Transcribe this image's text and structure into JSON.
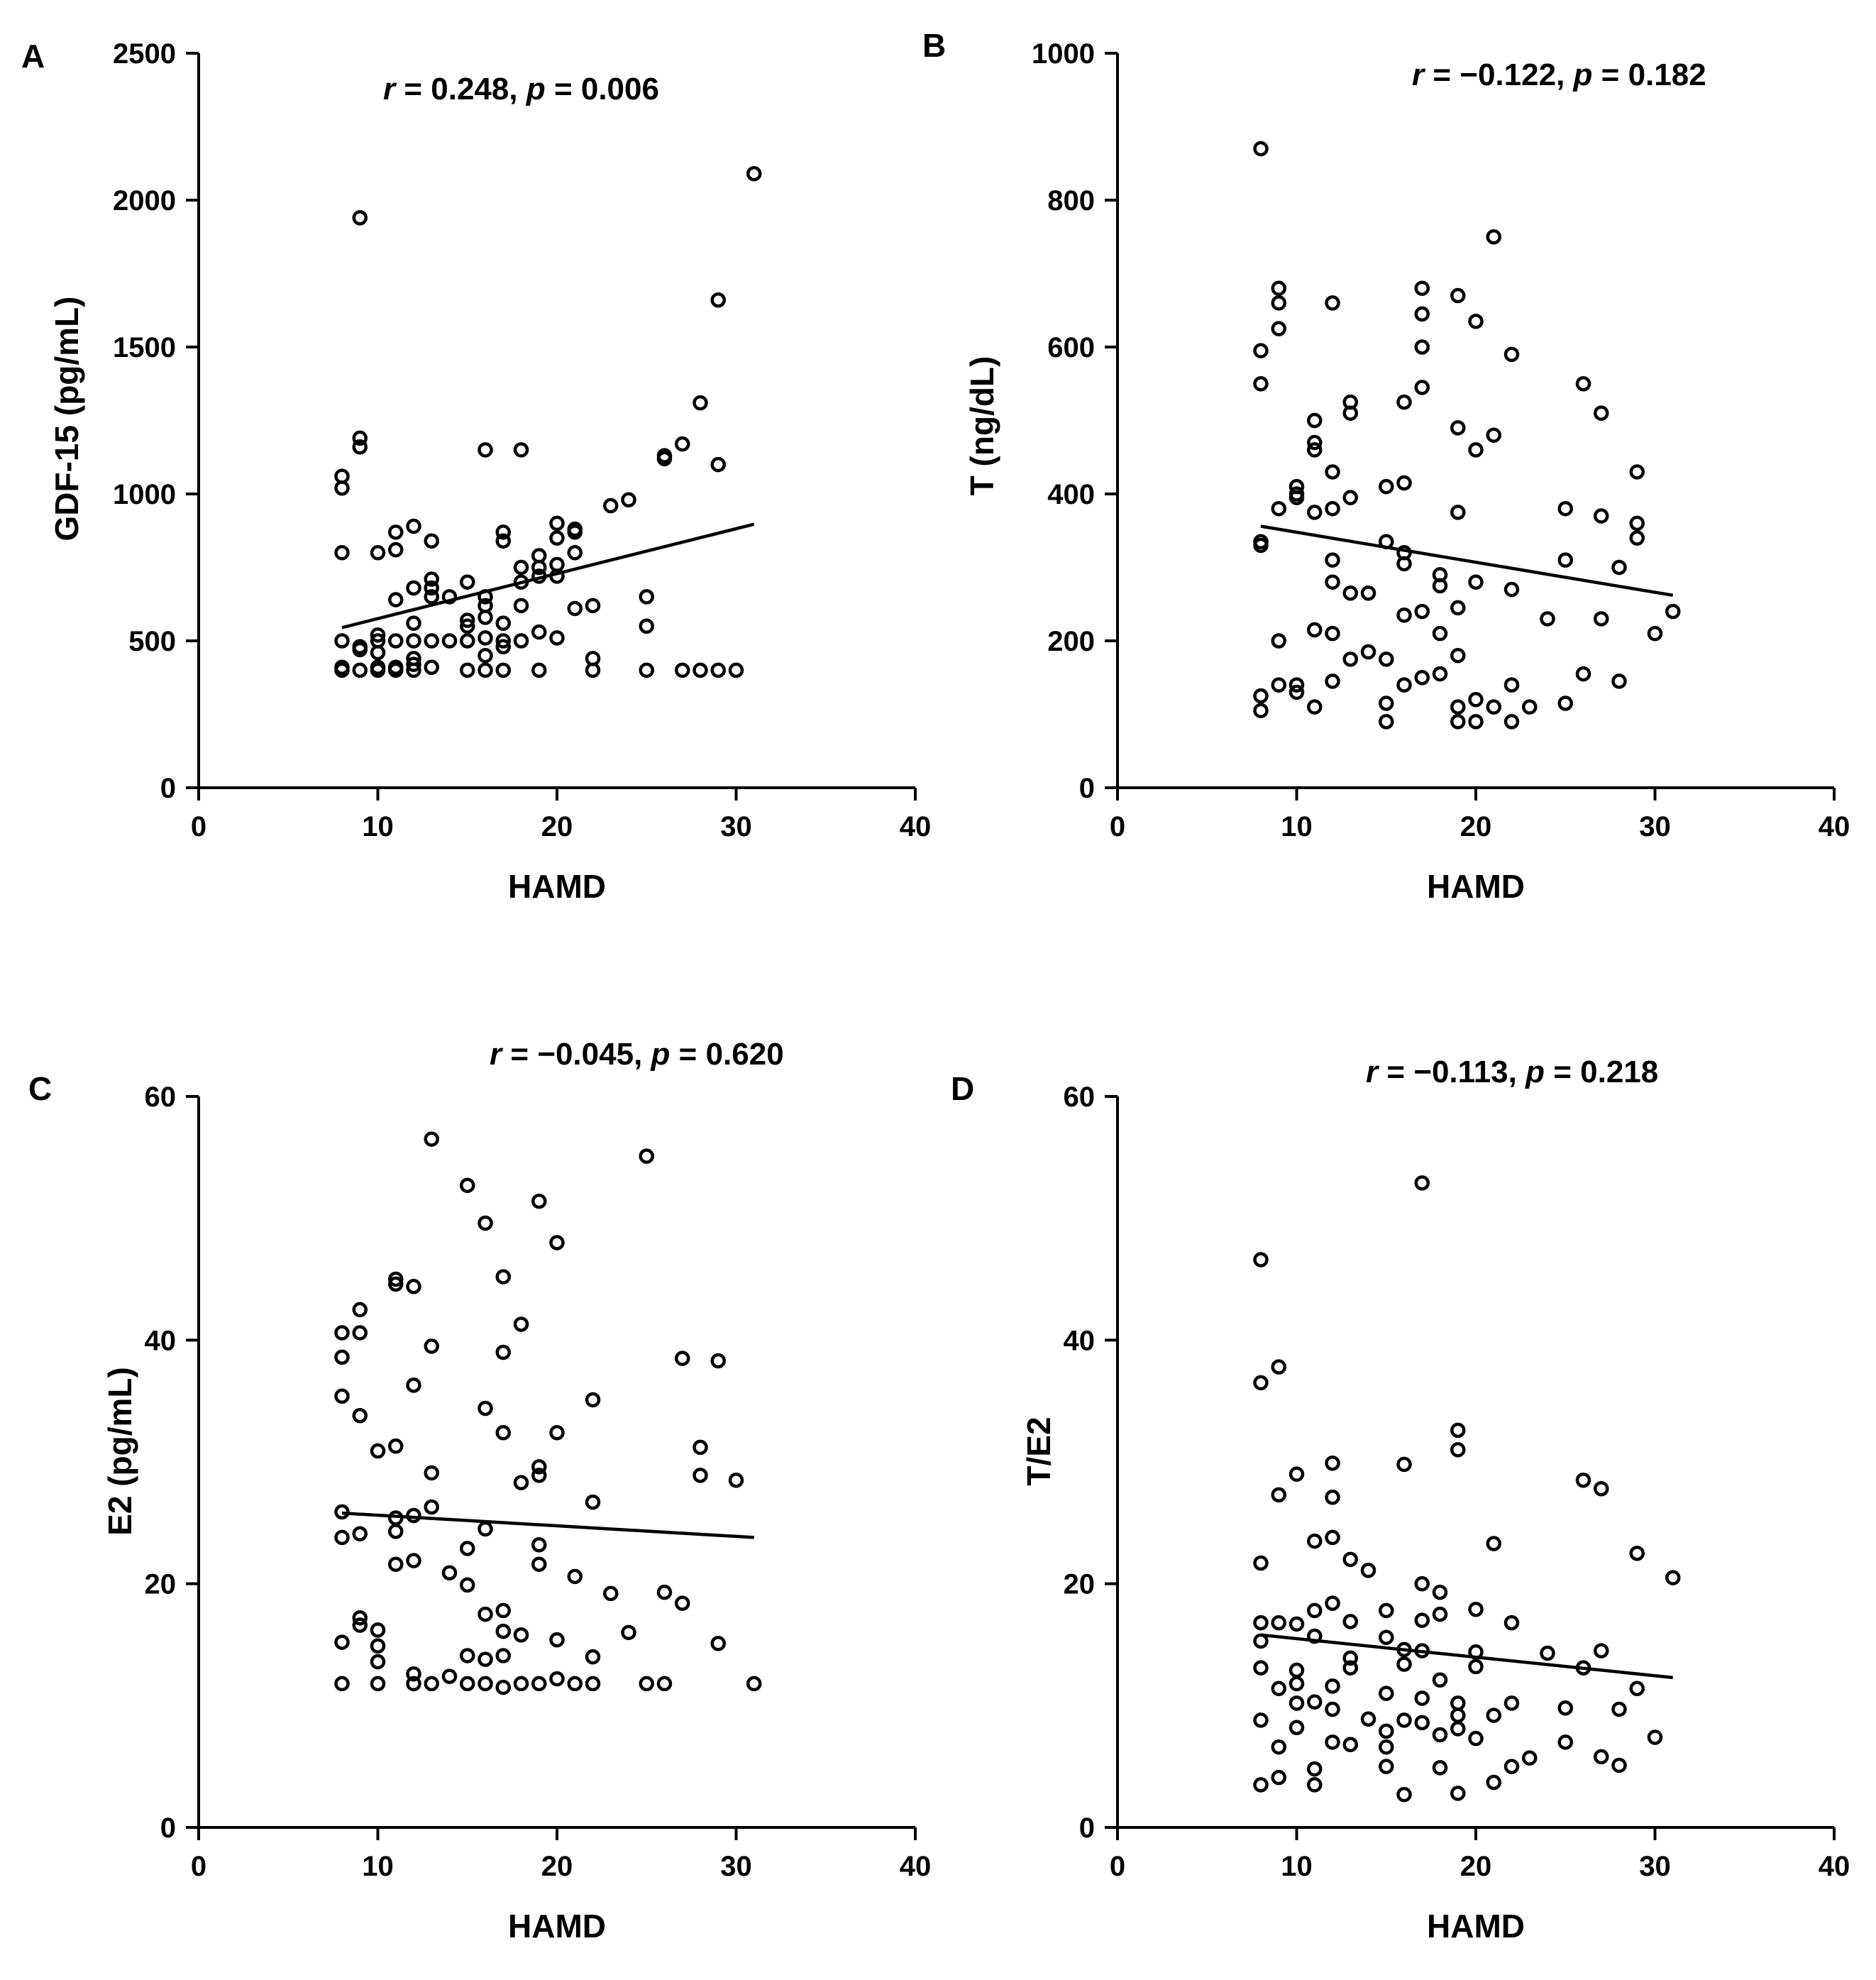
{
  "chart_data": [
    {
      "panel": "A",
      "type": "scatter",
      "stat": {
        "r_symbol": "r",
        "r_value": " = 0.248, ",
        "p_symbol": "p",
        "p_value": " = 0.006"
      },
      "xlabel": "HAMD",
      "ylabel": "GDF-15 (pg/mL)",
      "xlim": [
        0,
        40
      ],
      "ylim": [
        0,
        2500
      ],
      "xticks": [
        "0",
        "10",
        "20",
        "30",
        "40"
      ],
      "yticks": [
        "0",
        "500",
        "1000",
        "1500",
        "2000",
        "2500"
      ],
      "x": [
        8,
        8,
        8,
        8,
        8,
        8,
        9,
        9,
        9,
        9,
        9,
        9,
        10,
        10,
        10,
        10,
        10,
        10,
        11,
        11,
        11,
        11,
        11,
        11,
        12,
        12,
        12,
        12,
        12,
        12,
        12,
        13,
        13,
        13,
        13,
        13,
        13,
        14,
        14,
        15,
        15,
        15,
        15,
        15,
        16,
        16,
        16,
        16,
        16,
        16,
        16,
        17,
        17,
        17,
        17,
        17,
        17,
        18,
        18,
        18,
        18,
        18,
        19,
        19,
        19,
        19,
        19,
        20,
        20,
        20,
        20,
        20,
        21,
        21,
        21,
        21,
        22,
        22,
        22,
        23,
        24,
        25,
        25,
        25,
        26,
        26,
        27,
        27,
        28,
        28,
        29,
        29,
        29,
        30,
        31
      ],
      "y": [
        400,
        410,
        500,
        800,
        1020,
        1060,
        400,
        470,
        480,
        1160,
        1190,
        1940,
        400,
        410,
        460,
        500,
        520,
        800,
        400,
        410,
        500,
        640,
        810,
        870,
        400,
        420,
        440,
        500,
        560,
        680,
        890,
        410,
        500,
        650,
        680,
        710,
        840,
        500,
        650,
        400,
        500,
        550,
        570,
        700,
        400,
        450,
        510,
        580,
        620,
        650,
        1150,
        400,
        480,
        500,
        560,
        840,
        870,
        500,
        620,
        700,
        750,
        1150,
        400,
        530,
        720,
        750,
        790,
        510,
        720,
        760,
        850,
        900,
        610,
        800,
        870,
        880,
        400,
        440,
        620,
        960,
        980,
        400,
        550,
        650,
        1130,
        1120,
        400,
        1170,
        400,
        1310,
        400,
        1100,
        1660,
        400,
        2090
      ],
      "fit": {
        "x": [
          8,
          31
        ],
        "y": [
          545,
          897
        ]
      }
    },
    {
      "panel": "B",
      "type": "scatter",
      "stat": {
        "r_symbol": "r",
        "r_value": " = −0.122, ",
        "p_symbol": "p",
        "p_value": " = 0.182"
      },
      "xlabel": "HAMD",
      "ylabel": "T (ng/dL)",
      "xlim": [
        0,
        40
      ],
      "ylim": [
        0,
        1000
      ],
      "xticks": [
        "0",
        "10",
        "20",
        "30",
        "40"
      ],
      "yticks": [
        "0",
        "200",
        "400",
        "600",
        "800",
        "1000"
      ],
      "x": [
        8,
        8,
        8,
        8,
        8,
        8,
        8,
        9,
        9,
        9,
        9,
        9,
        9,
        10,
        10,
        10,
        10,
        10,
        11,
        11,
        11,
        11,
        11,
        11,
        12,
        12,
        12,
        12,
        12,
        12,
        12,
        13,
        13,
        13,
        13,
        13,
        14,
        14,
        15,
        15,
        15,
        15,
        15,
        16,
        16,
        16,
        16,
        16,
        16,
        17,
        17,
        17,
        17,
        17,
        17,
        18,
        18,
        18,
        18,
        19,
        19,
        19,
        19,
        19,
        19,
        19,
        20,
        20,
        20,
        20,
        20,
        21,
        21,
        21,
        22,
        22,
        22,
        22,
        23,
        24,
        25,
        25,
        25,
        26,
        26,
        27,
        27,
        27,
        28,
        28,
        29,
        29,
        29,
        30,
        31
      ],
      "y": [
        105,
        125,
        330,
        335,
        550,
        595,
        870,
        140,
        200,
        380,
        660,
        680,
        625,
        130,
        140,
        400,
        410,
        395,
        110,
        215,
        375,
        460,
        470,
        500,
        145,
        210,
        280,
        310,
        380,
        430,
        660,
        175,
        265,
        395,
        510,
        525,
        185,
        265,
        90,
        115,
        175,
        335,
        410,
        140,
        235,
        305,
        320,
        415,
        525,
        150,
        240,
        545,
        600,
        645,
        680,
        155,
        210,
        275,
        290,
        90,
        110,
        180,
        245,
        375,
        490,
        670,
        90,
        120,
        280,
        460,
        635,
        110,
        480,
        750,
        90,
        140,
        270,
        590,
        110,
        230,
        115,
        310,
        380,
        155,
        550,
        230,
        370,
        510,
        145,
        300,
        340,
        360,
        430,
        210,
        240
      ],
      "fit": {
        "x": [
          8,
          31
        ],
        "y": [
          356,
          262
        ]
      }
    },
    {
      "panel": "C",
      "type": "scatter",
      "stat": {
        "r_symbol": "r",
        "r_value": " = −0.045, ",
        "p_symbol": "p",
        "p_value": " = 0.620"
      },
      "xlabel": "HAMD",
      "ylabel": "E2 (pg/mL)",
      "xlim": [
        0,
        40
      ],
      "ylim": [
        0,
        60
      ],
      "xticks": [
        "0",
        "10",
        "20",
        "30",
        "40"
      ],
      "yticks": [
        "0",
        "20",
        "40",
        "60"
      ],
      "x": [
        8,
        8,
        8,
        8,
        8,
        8,
        8,
        9,
        9,
        9,
        9,
        9,
        9,
        10,
        10,
        10,
        10,
        10,
        11,
        11,
        11,
        11,
        11,
        11,
        12,
        12,
        12,
        12,
        12,
        12,
        13,
        13,
        13,
        13,
        13,
        14,
        14,
        15,
        15,
        15,
        15,
        15,
        16,
        16,
        16,
        16,
        16,
        16,
        17,
        17,
        17,
        17,
        17,
        17,
        17,
        18,
        18,
        18,
        18,
        19,
        19,
        19,
        19,
        19,
        19,
        20,
        20,
        20,
        20,
        21,
        21,
        22,
        22,
        22,
        22,
        23,
        24,
        25,
        25,
        26,
        26,
        27,
        27,
        28,
        28,
        29,
        29,
        30,
        31
      ],
      "y": [
        11.8,
        15.2,
        23.8,
        25.9,
        35.4,
        38.6,
        40.6,
        16.6,
        17.2,
        24.1,
        33.8,
        40.6,
        42.5,
        11.8,
        13.6,
        14.9,
        16.2,
        30.9,
        21.6,
        24.3,
        25.4,
        31.3,
        44.6,
        45.0,
        11.8,
        12.6,
        21.9,
        25.6,
        36.3,
        44.4,
        11.8,
        26.3,
        29.1,
        39.5,
        56.5,
        12.4,
        20.9,
        11.8,
        14.1,
        19.9,
        22.9,
        52.7,
        11.8,
        13.8,
        17.5,
        24.5,
        34.4,
        49.6,
        11.5,
        14.1,
        16.1,
        17.8,
        32.4,
        39.0,
        45.2,
        11.8,
        15.8,
        28.3,
        41.3,
        11.8,
        21.6,
        23.2,
        28.9,
        29.6,
        51.4,
        12.2,
        15.4,
        32.4,
        48.0,
        11.8,
        20.6,
        11.8,
        14.0,
        26.7,
        35.1,
        19.2,
        16.0,
        11.8,
        55.1,
        11.8,
        19.3,
        18.4,
        38.5,
        28.9,
        31.2,
        15.1,
        38.3,
        28.5,
        11.8
      ],
      "fit": {
        "x": [
          8,
          31
        ],
        "y": [
          25.8,
          23.8
        ]
      }
    },
    {
      "panel": "D",
      "type": "scatter",
      "stat": {
        "r_symbol": "r",
        "r_value": " = −0.113, ",
        "p_symbol": "p",
        "p_value": " = 0.218"
      },
      "xlabel": "HAMD",
      "ylabel": "T/E2",
      "xlim": [
        0,
        40
      ],
      "ylim": [
        0,
        60
      ],
      "xticks": [
        "0",
        "10",
        "20",
        "30",
        "40"
      ],
      "yticks": [
        "0",
        "20",
        "40",
        "60"
      ],
      "x": [
        8,
        8,
        8,
        8,
        8,
        8,
        8,
        8,
        9,
        9,
        9,
        9,
        9,
        9,
        10,
        10,
        10,
        10,
        10,
        10,
        11,
        11,
        11,
        11,
        11,
        11,
        12,
        12,
        12,
        12,
        12,
        12,
        12,
        13,
        13,
        13,
        13,
        13,
        14,
        14,
        15,
        15,
        15,
        15,
        15,
        15,
        16,
        16,
        16,
        16,
        16,
        17,
        17,
        17,
        17,
        17,
        17,
        18,
        18,
        18,
        18,
        18,
        19,
        19,
        19,
        19,
        19,
        19,
        20,
        20,
        20,
        20,
        21,
        21,
        21,
        22,
        22,
        22,
        23,
        24,
        25,
        25,
        26,
        26,
        27,
        27,
        27,
        28,
        28,
        29,
        29,
        30,
        31
      ],
      "y": [
        3.5,
        8.8,
        13.1,
        15.3,
        16.8,
        21.7,
        36.5,
        46.6,
        4.1,
        6.6,
        11.4,
        16.8,
        27.3,
        37.8,
        8.2,
        10.2,
        11.8,
        12.9,
        16.7,
        29.0,
        3.5,
        4.8,
        10.3,
        15.7,
        17.8,
        23.5,
        7.0,
        9.7,
        11.6,
        18.4,
        23.8,
        27.1,
        29.9,
        6.8,
        13.1,
        13.9,
        16.9,
        22.0,
        8.9,
        21.1,
        5.0,
        6.6,
        7.9,
        11.0,
        15.6,
        17.8,
        2.7,
        8.8,
        13.4,
        14.6,
        29.8,
        8.6,
        10.6,
        14.5,
        17.0,
        20.0,
        52.9,
        4.9,
        7.6,
        12.1,
        17.5,
        19.3,
        2.8,
        8.1,
        9.2,
        10.2,
        31.0,
        32.6,
        7.3,
        13.2,
        14.4,
        17.9,
        3.7,
        9.2,
        23.3,
        5.0,
        10.2,
        16.8,
        5.7,
        14.3,
        7.0,
        9.8,
        13.1,
        28.5,
        5.8,
        14.5,
        27.8,
        5.1,
        9.7,
        11.4,
        22.5,
        7.4,
        20.5
      ],
      "fit": {
        "x": [
          8,
          31
        ],
        "y": [
          15.8,
          12.3
        ]
      }
    }
  ]
}
